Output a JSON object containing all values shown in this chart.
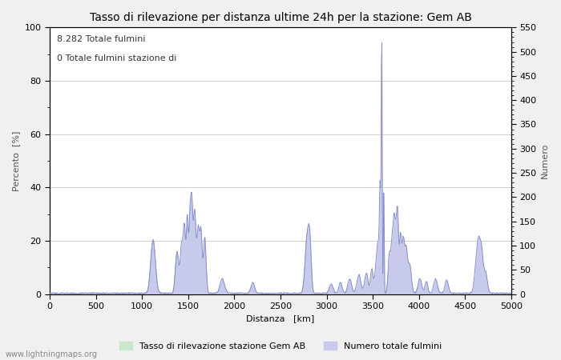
{
  "title": "Tasso di rilevazione per distanza ultime 24h per la stazione: Gem AB",
  "xlabel": "Distanza   [km]",
  "ylabel_left": "Percento  [%]",
  "ylabel_right": "Numero",
  "annotation_line1": "8.282 Totale fulmini",
  "annotation_line2": "0 Totale fulmini stazione di",
  "legend_label1": "Tasso di rilevazione stazione Gem AB",
  "legend_label2": "Numero totale fulmini",
  "watermark": "www.lightningmaps.org",
  "xlim": [
    0,
    5000
  ],
  "ylim_left": [
    0,
    100
  ],
  "ylim_right": [
    0,
    550
  ],
  "xticks": [
    0,
    500,
    1000,
    1500,
    2000,
    2500,
    3000,
    3500,
    4000,
    4500,
    5000
  ],
  "yticks_left": [
    0,
    20,
    40,
    60,
    80,
    100
  ],
  "yticks_right": [
    0,
    50,
    100,
    150,
    200,
    250,
    300,
    350,
    400,
    450,
    500,
    550
  ],
  "fill_color_green": "#c8e8c8",
  "fill_color_blue": "#c8caeb",
  "line_color": "#8890cc",
  "bg_color": "#f0f0f0",
  "plot_bg_color": "#ffffff",
  "grid_color": "#bbbbbb",
  "title_fontsize": 10,
  "axis_label_fontsize": 8,
  "tick_fontsize": 8,
  "annotation_fontsize": 8,
  "legend_fontsize": 8,
  "watermark_fontsize": 7
}
